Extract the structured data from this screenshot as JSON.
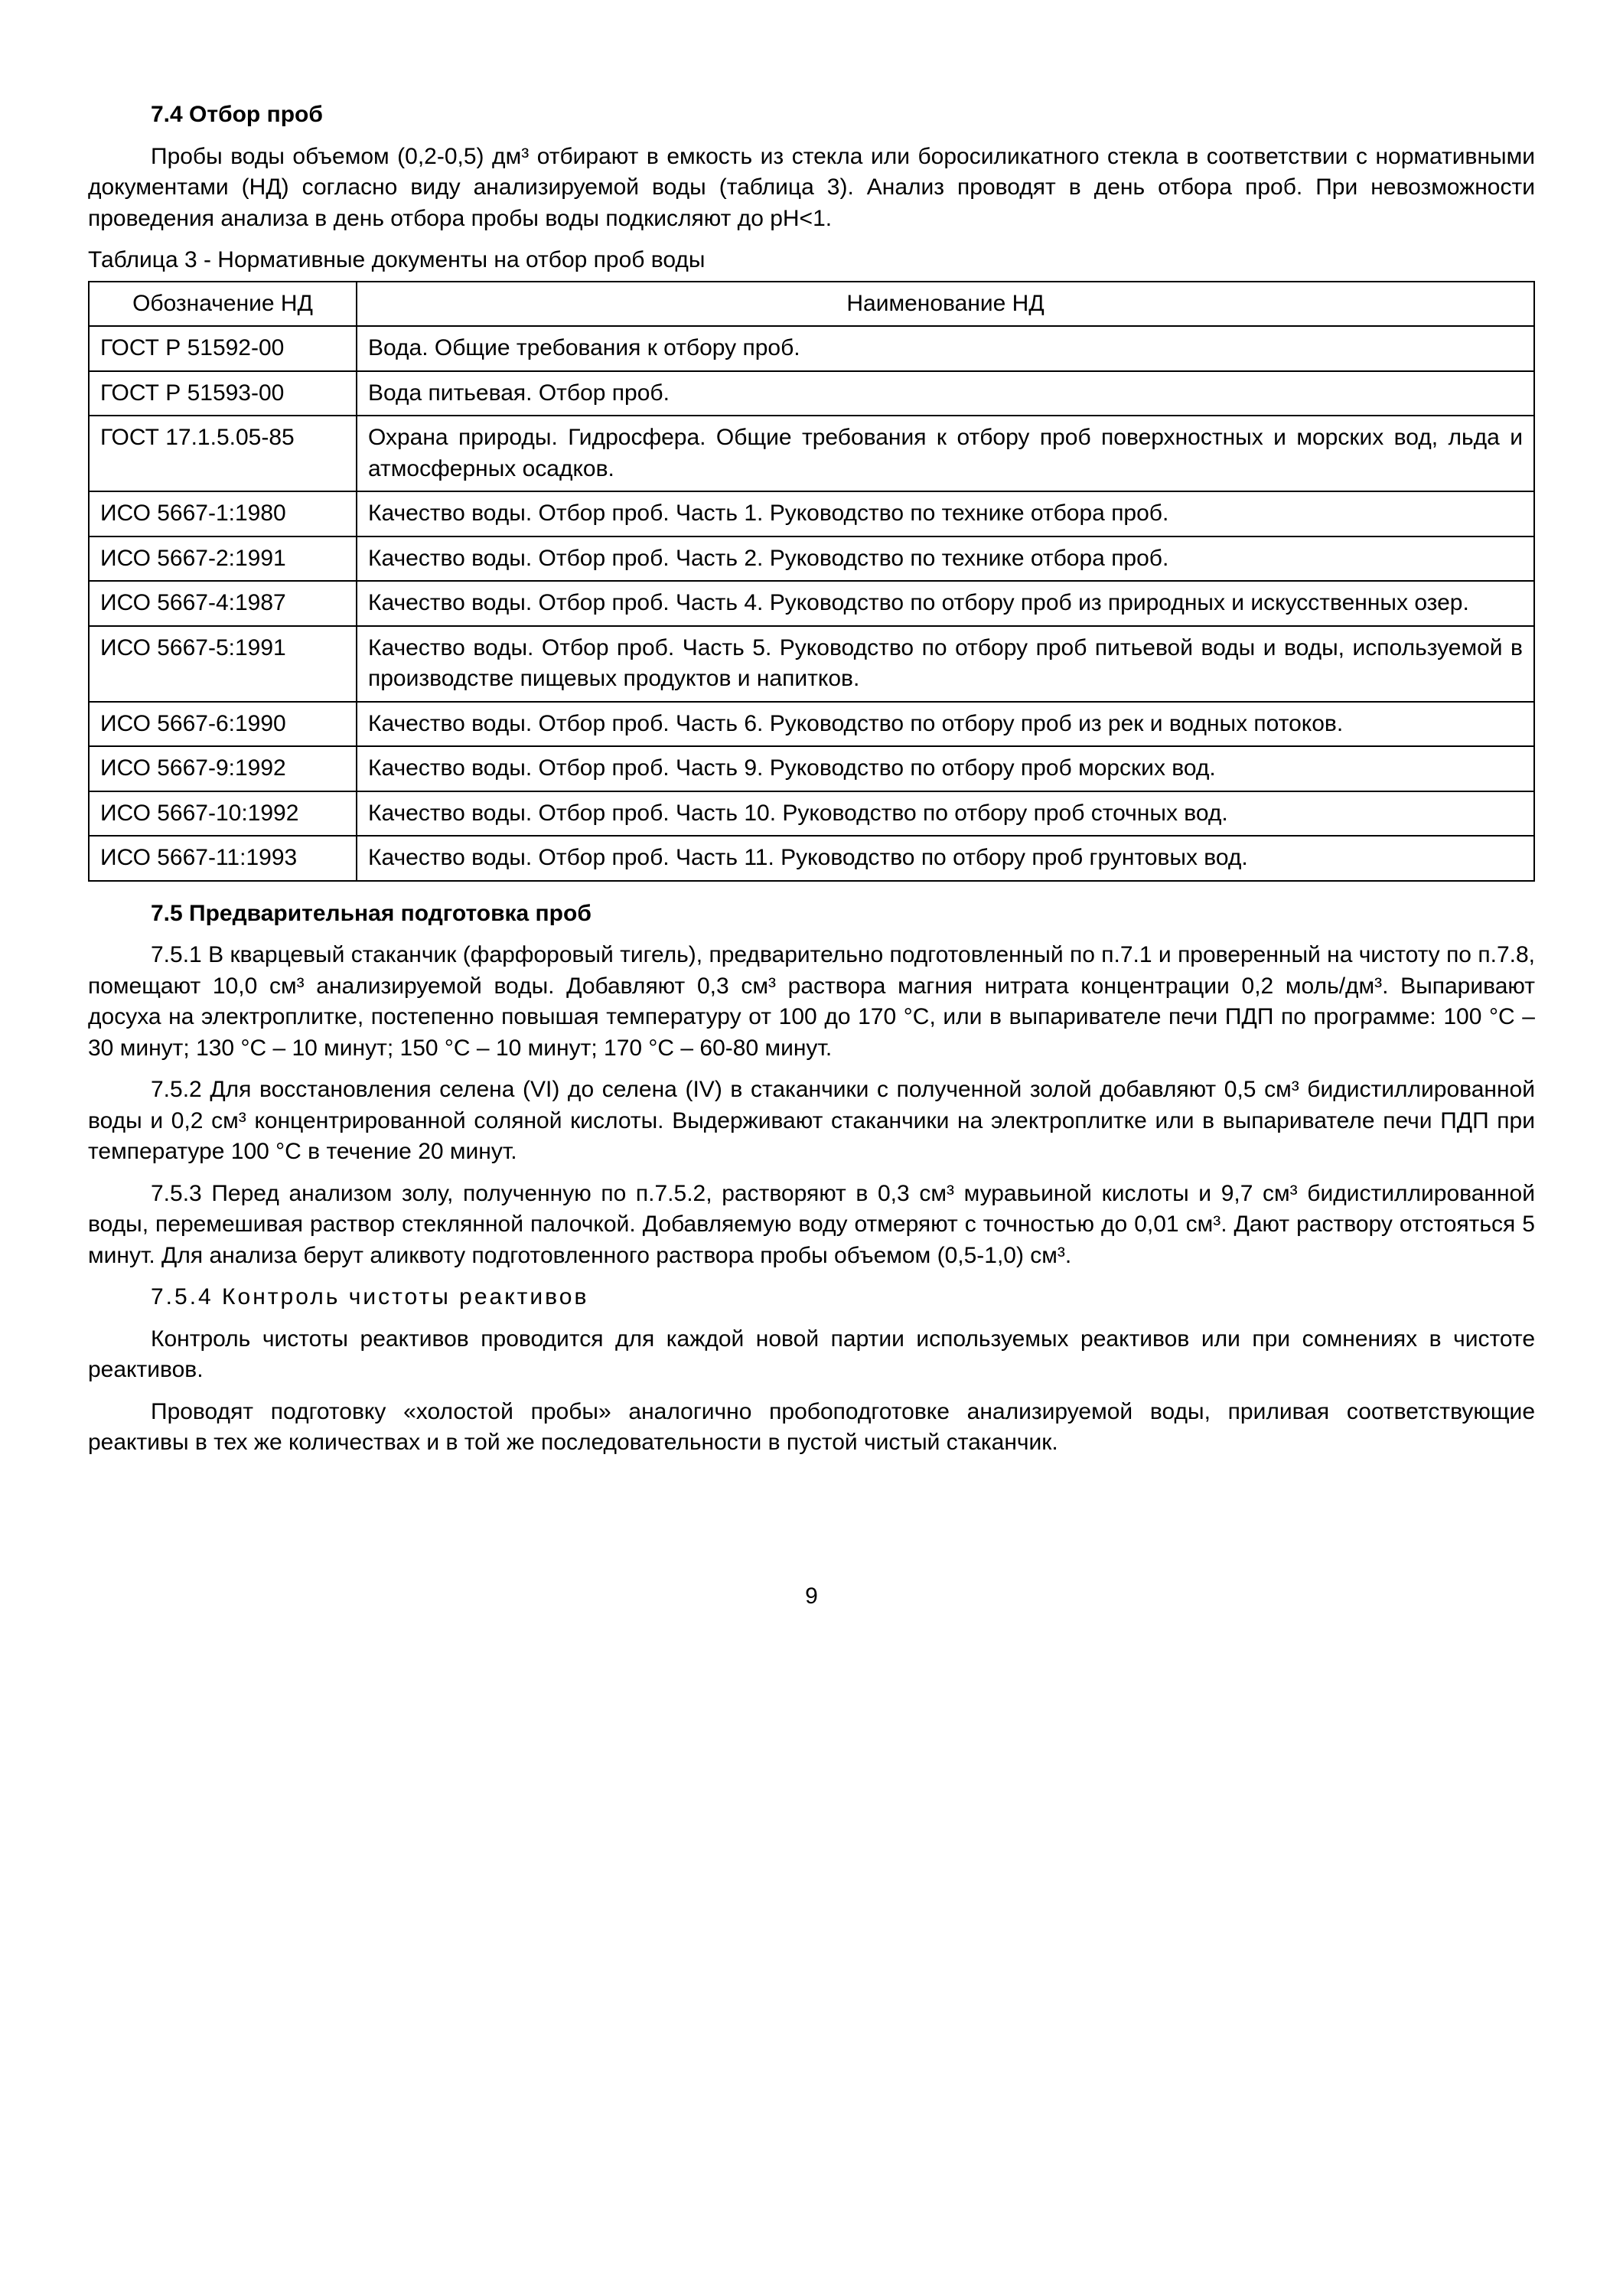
{
  "section_7_4": {
    "heading": "7.4 Отбор проб",
    "p1": "Пробы воды объемом (0,2-0,5) дм³ отбирают в емкость из стекла или боросиликатного стекла в соответствии с нормативными документами (НД) согласно виду анализируемой воды (таблица 3). Анализ проводят в день отбора проб. При невозможности проведения анализа в день отбора пробы воды подкисляют до pH<1."
  },
  "table3": {
    "caption": "Таблица 3 - Нормативные документы на отбор проб воды",
    "col1_header": "Обозначение НД",
    "col2_header": "Наименование НД",
    "rows": [
      {
        "code": "ГОСТ Р 51592-00",
        "name": "Вода. Общие требования к отбору проб."
      },
      {
        "code": "ГОСТ Р 51593-00",
        "name": "Вода питьевая. Отбор проб."
      },
      {
        "code": "ГОСТ 17.1.5.05-85",
        "name": "Охрана природы. Гидросфера. Общие требования к отбору проб поверхностных и морских вод, льда и атмосферных осадков."
      },
      {
        "code": "ИСО 5667-1:1980",
        "name": "Качество воды. Отбор проб. Часть 1. Руководство по технике отбора проб."
      },
      {
        "code": "ИСО 5667-2:1991",
        "name": "Качество воды. Отбор проб. Часть 2. Руководство по технике отбора проб."
      },
      {
        "code": "ИСО 5667-4:1987",
        "name": "Качество воды. Отбор проб. Часть 4. Руководство по отбору проб из природных и искусственных озер."
      },
      {
        "code": "ИСО 5667-5:1991",
        "name": "Качество воды. Отбор проб. Часть 5. Руководство по отбору проб питьевой воды и воды, используемой в производстве пищевых продуктов и напитков."
      },
      {
        "code": "ИСО 5667-6:1990",
        "name": "Качество воды. Отбор проб. Часть 6. Руководство по отбору проб из рек и водных потоков."
      },
      {
        "code": "ИСО 5667-9:1992",
        "name": "Качество воды. Отбор проб. Часть 9. Руководство по отбору проб морских вод."
      },
      {
        "code": "ИСО 5667-10:1992",
        "name": "Качество воды. Отбор проб. Часть 10. Руководство по отбору проб сточных вод."
      },
      {
        "code": "ИСО 5667-11:1993",
        "name": "Качество воды. Отбор проб. Часть 11. Руководство по отбору проб грунтовых вод."
      }
    ]
  },
  "section_7_5": {
    "heading": "7.5 Предварительная подготовка проб",
    "p1": "7.5.1 В кварцевый стаканчик (фарфоровый тигель), предварительно подготовленный по п.7.1 и проверенный на чистоту по п.7.8, помещают 10,0 см³ анализируемой воды. Добавляют 0,3 см³ раствора магния нитрата концентрации 0,2 моль/дм³. Выпаривают досуха на электроплитке, постепенно повышая температуру от 100 до 170 °С, или в выпаривателе печи ПДП по программе: 100 °С – 30 минут; 130 °С – 10 минут; 150 °С – 10 минут; 170 °С – 60-80 минут.",
    "p2": "7.5.2 Для восстановления селена (VI) до селена (IV) в стаканчики с полученной золой добавляют 0,5 см³ бидистиллированной воды и 0,2 см³ концентрированной соляной кислоты. Выдерживают стаканчики на электроплитке или в выпаривателе печи ПДП при температуре 100 °С в течение 20 минут.",
    "p3": "7.5.3 Перед анализом золу, полученную по п.7.5.2, растворяют в 0,3 см³ муравьиной кислоты и 9,7 см³ бидистиллированной воды, перемешивая раствор стеклянной палочкой. Добавляемую воду отмеряют с точностью до 0,01 см³. Дают раствору отстояться 5 минут. Для анализа берут аликвоту подготовленного раствора пробы объемом (0,5-1,0) см³.",
    "h754": "7.5.4 Контроль чистоты реактивов",
    "p4": "Контроль чистоты реактивов проводится для каждой новой партии используемых реактивов или при сомнениях в чистоте реактивов.",
    "p5": "Проводят подготовку «холостой пробы» аналогично пробоподготовке анализируемой воды, приливая соответствующие реактивы в тех же количествах и в той же последовательности в пустой чистый стаканчик."
  },
  "page_number": "9"
}
